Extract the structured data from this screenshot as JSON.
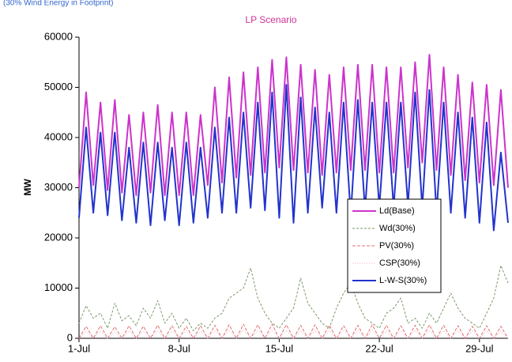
{
  "chart_data": {
    "type": "line",
    "subtitle": "(30% Wind Energy in Footprint)",
    "title": "LP Scenario",
    "y_label": "MW",
    "x": [
      1,
      1.5,
      2,
      2.5,
      3,
      3.5,
      4,
      4.5,
      5,
      5.5,
      6,
      6.5,
      7,
      7.5,
      8,
      8.5,
      9,
      9.5,
      10,
      10.5,
      11,
      11.5,
      12,
      12.5,
      13,
      13.5,
      14,
      14.5,
      15,
      15.5,
      16,
      16.5,
      17,
      17.5,
      18,
      18.5,
      19,
      19.5,
      20,
      20.5,
      21,
      21.5,
      22,
      22.5,
      23,
      23.5,
      24,
      24.5,
      25,
      25.5,
      26,
      26.5,
      27,
      27.5,
      28,
      28.5,
      29,
      29.5,
      30,
      30.5,
      31
    ],
    "xlim": [
      1,
      31
    ],
    "xticks": [
      {
        "value": 1,
        "label": "1-Jul"
      },
      {
        "value": 8,
        "label": "8-Jul"
      },
      {
        "value": 15,
        "label": "15-Jul"
      },
      {
        "value": 22,
        "label": "22-Jul"
      },
      {
        "value": 29,
        "label": "29-Jul"
      }
    ],
    "ylim": [
      0,
      60000
    ],
    "yticks": [
      0,
      10000,
      20000,
      30000,
      40000,
      50000,
      60000
    ],
    "series": [
      {
        "name": "Ld(Base)",
        "color": "#cc33cc",
        "width": 2,
        "dash": "none",
        "values": [
          30000,
          49000,
          30500,
          47000,
          29500,
          47500,
          29000,
          44500,
          28500,
          45000,
          29000,
          46500,
          28500,
          45000,
          28500,
          45000,
          28500,
          44500,
          30500,
          50000,
          31000,
          52000,
          32000,
          53000,
          32500,
          54000,
          33000,
          55500,
          34000,
          56000,
          33500,
          54500,
          33000,
          53500,
          32500,
          52500,
          33000,
          54000,
          33500,
          54500,
          33500,
          54500,
          33000,
          54000,
          33000,
          54000,
          34000,
          55000,
          35000,
          56500,
          33500,
          54000,
          32500,
          52500,
          31500,
          51000,
          31000,
          50500,
          30500,
          49500,
          30000
        ]
      },
      {
        "name": "Wd(30%)",
        "color": "#7a9a6a",
        "width": 1,
        "dash": "3 2",
        "values": [
          3000,
          6500,
          4000,
          5000,
          2000,
          7000,
          3500,
          4500,
          2500,
          6000,
          4000,
          7500,
          3000,
          5000,
          2000,
          4000,
          1500,
          3000,
          2000,
          4000,
          5000,
          8000,
          9000,
          10000,
          14000,
          8000,
          5000,
          3000,
          2000,
          4000,
          6000,
          12000,
          7000,
          5000,
          3000,
          2000,
          6000,
          9000,
          11000,
          7000,
          4000,
          3000,
          2000,
          5000,
          6000,
          8000,
          3000,
          4000,
          2000,
          5000,
          3000,
          6000,
          9000,
          6000,
          4000,
          3000,
          2000,
          5000,
          8000,
          14500,
          11000
        ]
      },
      {
        "name": "PV(30%)",
        "color": "#e07070",
        "width": 1,
        "dash": "4 2",
        "values": [
          0,
          2400,
          0,
          2500,
          0,
          2300,
          0,
          2500,
          0,
          2400,
          0,
          2600,
          0,
          2500,
          0,
          2400,
          0,
          2500,
          0,
          2600,
          0,
          2700,
          0,
          2800,
          0,
          2700,
          0,
          2800,
          0,
          2700,
          0,
          2600,
          0,
          2700,
          0,
          2600,
          0,
          2500,
          0,
          2600,
          0,
          2700,
          0,
          2600,
          0,
          2500,
          0,
          2600,
          0,
          2700,
          0,
          2600,
          0,
          2500,
          0,
          2400,
          0,
          2500,
          0,
          2400,
          0
        ]
      },
      {
        "name": "CSP(30%)",
        "color": "#f0a8c8",
        "width": 1,
        "dash": "1 2",
        "values": [
          0,
          1400,
          0,
          1500,
          0,
          1300,
          0,
          1500,
          0,
          1400,
          0,
          1500,
          0,
          1400,
          0,
          1500,
          0,
          1400,
          0,
          1600,
          0,
          1600,
          0,
          1700,
          0,
          1600,
          0,
          1700,
          0,
          1600,
          0,
          1500,
          0,
          1600,
          0,
          1500,
          0,
          1500,
          0,
          1600,
          0,
          1600,
          0,
          1500,
          0,
          1500,
          0,
          1600,
          0,
          1600,
          0,
          1500,
          0,
          1500,
          0,
          1400,
          0,
          1500,
          0,
          1400,
          0
        ]
      },
      {
        "name": "L-W-S(30%)",
        "color": "#2233cc",
        "width": 2,
        "dash": "none",
        "values": [
          24000,
          42000,
          25000,
          41000,
          24500,
          41000,
          23500,
          38000,
          23000,
          39000,
          22500,
          39000,
          23500,
          38000,
          22500,
          39000,
          23000,
          38000,
          24000,
          42000,
          25000,
          44000,
          25000,
          45000,
          26000,
          47000,
          25500,
          49000,
          24000,
          50500,
          23000,
          48000,
          25000,
          46000,
          26000,
          45000,
          25000,
          47000,
          24500,
          47500,
          25500,
          47000,
          26000,
          47000,
          26000,
          47000,
          26500,
          49000,
          26000,
          49500,
          25000,
          47000,
          25000,
          45000,
          24000,
          44000,
          23000,
          43000,
          21500,
          37000,
          23000
        ]
      }
    ],
    "grid": false,
    "legend": "right"
  }
}
